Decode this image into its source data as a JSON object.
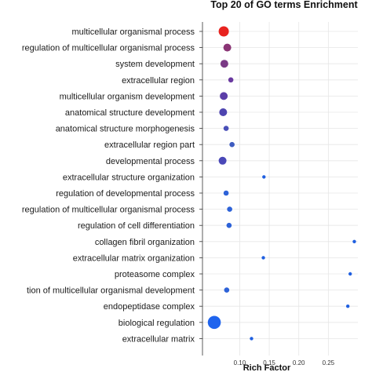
{
  "chart_data": {
    "type": "scatter",
    "title": "Top 20 of GO terms Enrichment",
    "xlabel": "Rich Factor",
    "ylabel": "",
    "xlim": [
      0.037,
      0.3
    ],
    "xticks": [
      0.1,
      0.15,
      0.2,
      0.25
    ],
    "xtick_labels": [
      "0.10",
      "0.15",
      "0.20",
      "0.25"
    ],
    "grid": true,
    "color_scale": {
      "low": "#1f5fe0",
      "mid": "#7a3a8a",
      "high": "#e8231f"
    },
    "points": [
      {
        "term": "multicellular organismal process",
        "x": 0.073,
        "size": 5,
        "color": "#e8231f"
      },
      {
        "term": "regulation of multicellular organismal process",
        "x": 0.079,
        "size": 3,
        "color": "#8a3575"
      },
      {
        "term": "system development",
        "x": 0.074,
        "size": 3,
        "color": "#7a3a85"
      },
      {
        "term": "extracellular region",
        "x": 0.085,
        "size": 2,
        "color": "#6a3aa0"
      },
      {
        "term": "multicellular organism development",
        "x": 0.073,
        "size": 3,
        "color": "#5b3ea8"
      },
      {
        "term": "anatomical structure development",
        "x": 0.072,
        "size": 3,
        "color": "#4e45b0"
      },
      {
        "term": "anatomical structure morphogenesis",
        "x": 0.077,
        "size": 2,
        "color": "#4a50b8"
      },
      {
        "term": "extracellular region part",
        "x": 0.087,
        "size": 2,
        "color": "#3e5cc0"
      },
      {
        "term": "developmental process",
        "x": 0.071,
        "size": 3,
        "color": "#4a48b8"
      },
      {
        "term": "extracellular structure organization",
        "x": 0.141,
        "size": 1,
        "color": "#1f5fe0"
      },
      {
        "term": "regulation of developmental process",
        "x": 0.077,
        "size": 2,
        "color": "#2d62d8"
      },
      {
        "term": "regulation of multicellular organismal process",
        "x": 0.083,
        "size": 2,
        "color": "#2d62d8"
      },
      {
        "term": "regulation of cell differentiation",
        "x": 0.082,
        "size": 2,
        "color": "#2d62d8"
      },
      {
        "term": "collagen fibril organization",
        "x": 0.294,
        "size": 1,
        "color": "#1f5fe0"
      },
      {
        "term": "extracellular matrix organization",
        "x": 0.14,
        "size": 1,
        "color": "#1f5fe0"
      },
      {
        "term": "proteasome complex",
        "x": 0.287,
        "size": 1,
        "color": "#1f5fe0"
      },
      {
        "term": "tion of multicellular organismal development",
        "x": 0.078,
        "size": 2,
        "color": "#2d62d8"
      },
      {
        "term": "endopeptidase complex",
        "x": 0.283,
        "size": 1,
        "color": "#1f5fe0"
      },
      {
        "term": "biological regulation",
        "x": 0.057,
        "size": 6,
        "color": "#1f64ee"
      },
      {
        "term": "extracellular matrix",
        "x": 0.12,
        "size": 1,
        "color": "#1f5fe0"
      }
    ]
  }
}
